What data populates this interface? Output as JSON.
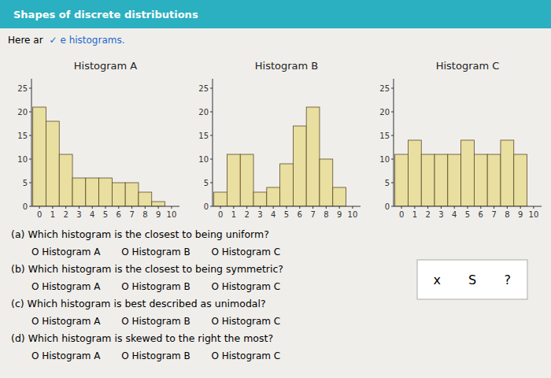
{
  "title": "Shapes of discrete distributions",
  "annotations": [
    "Here ar",
    "✓ e histograms.",
    "(a) Which histogram is the closest to being uniform?",
    "O Histogram A       O Histogram B       O Histogram C",
    "(b) Which histogram is the closest to being symmetric?",
    "O Histogram A       O Histogram B       O Histogram C",
    "(c) Which histogram is best described as unimodal?",
    "O Histogram A       O Histogram B       O Histogram C",
    "(d) Which histogram is skewed to the right the most?",
    "O Histogram A       O Histogram B       O Histogram C",
    "x",
    "S",
    "?"
  ],
  "chart_data": [
    {
      "type": "bar",
      "title": "Histogram A",
      "x": [
        0,
        1,
        2,
        3,
        4,
        5,
        6,
        7,
        8,
        9
      ],
      "values": [
        21,
        18,
        11,
        6,
        6,
        6,
        5,
        5,
        3,
        1
      ],
      "color": "#e8dfa0",
      "xlim": [
        -0.6,
        10.6
      ],
      "xticks": [
        0,
        1,
        2,
        3,
        4,
        5,
        6,
        7,
        8,
        9,
        10
      ],
      "ylim": [
        0,
        27
      ],
      "yticks": [
        0,
        5,
        10,
        15,
        20,
        25
      ],
      "grid": false
    },
    {
      "type": "bar",
      "title": "Histogram B",
      "x": [
        0,
        1,
        2,
        3,
        4,
        5,
        6,
        7,
        8,
        9
      ],
      "values": [
        3,
        11,
        11,
        3,
        4,
        9,
        17,
        21,
        10,
        4
      ],
      "color": "#e8dfa0",
      "xlim": [
        -0.6,
        10.6
      ],
      "xticks": [
        0,
        1,
        2,
        3,
        4,
        5,
        6,
        7,
        8,
        9,
        10
      ],
      "ylim": [
        0,
        27
      ],
      "yticks": [
        0,
        5,
        10,
        15,
        20,
        25
      ],
      "grid": false
    },
    {
      "type": "bar",
      "title": "Histogram C",
      "x": [
        0,
        1,
        2,
        3,
        4,
        5,
        6,
        7,
        8,
        9
      ],
      "values": [
        11,
        14,
        11,
        11,
        11,
        14,
        11,
        11,
        14,
        11
      ],
      "color": "#e8dfa0",
      "xlim": [
        -0.6,
        10.6
      ],
      "xticks": [
        0,
        1,
        2,
        3,
        4,
        5,
        6,
        7,
        8,
        9,
        10
      ],
      "ylim": [
        0,
        27
      ],
      "yticks": [
        0,
        5,
        10,
        15,
        20,
        25
      ],
      "grid": false
    }
  ]
}
